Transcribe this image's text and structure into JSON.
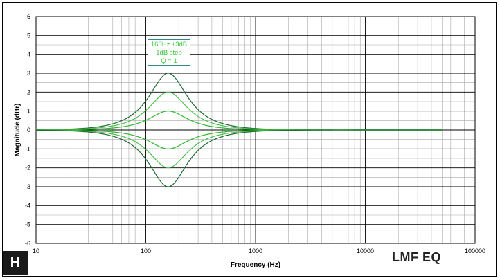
{
  "badge": {
    "letter": "H"
  },
  "corner_title": "LMF EQ",
  "chart_data": {
    "type": "line",
    "title": "",
    "xlabel": "Frequency (Hz)",
    "ylabel": "Magnitude (dBr)",
    "xscale": "log",
    "xlim": [
      10,
      100000
    ],
    "ylim": [
      -6,
      6
    ],
    "xticks": [
      "10",
      "100",
      "1000",
      "10000",
      "100000"
    ],
    "yticks": [
      "-6",
      "-5",
      "-4",
      "-3",
      "-2",
      "-1",
      "0",
      "1",
      "2",
      "3",
      "4",
      "5",
      "6"
    ],
    "grid": true,
    "annotation": [
      "160Hz ±3dB",
      "1dB step",
      "Q = 1"
    ],
    "series": [
      {
        "center_hz": 160,
        "gain_db": 3,
        "q": 1,
        "color": "#1e6b34",
        "x_range": [
          10,
          50000
        ]
      },
      {
        "center_hz": 160,
        "gain_db": 2,
        "q": 1,
        "color": "#4cbf4c",
        "x_range": [
          10,
          50000
        ]
      },
      {
        "center_hz": 160,
        "gain_db": 1,
        "q": 1,
        "color": "#2db82d",
        "x_range": [
          10,
          50000
        ]
      },
      {
        "center_hz": 160,
        "gain_db": -1,
        "q": 1,
        "color": "#2db82d",
        "x_range": [
          10,
          50000
        ]
      },
      {
        "center_hz": 160,
        "gain_db": -2,
        "q": 1,
        "color": "#4cbf4c",
        "x_range": [
          10,
          50000
        ]
      },
      {
        "center_hz": 160,
        "gain_db": -3,
        "q": 1,
        "color": "#1e6b34",
        "x_range": [
          10,
          50000
        ]
      }
    ],
    "colors": {
      "major_grid": "#000000",
      "minor_grid": "#a8a8a8",
      "annotation_border": "#2e8b8b",
      "annotation_text": "#39c639"
    }
  }
}
